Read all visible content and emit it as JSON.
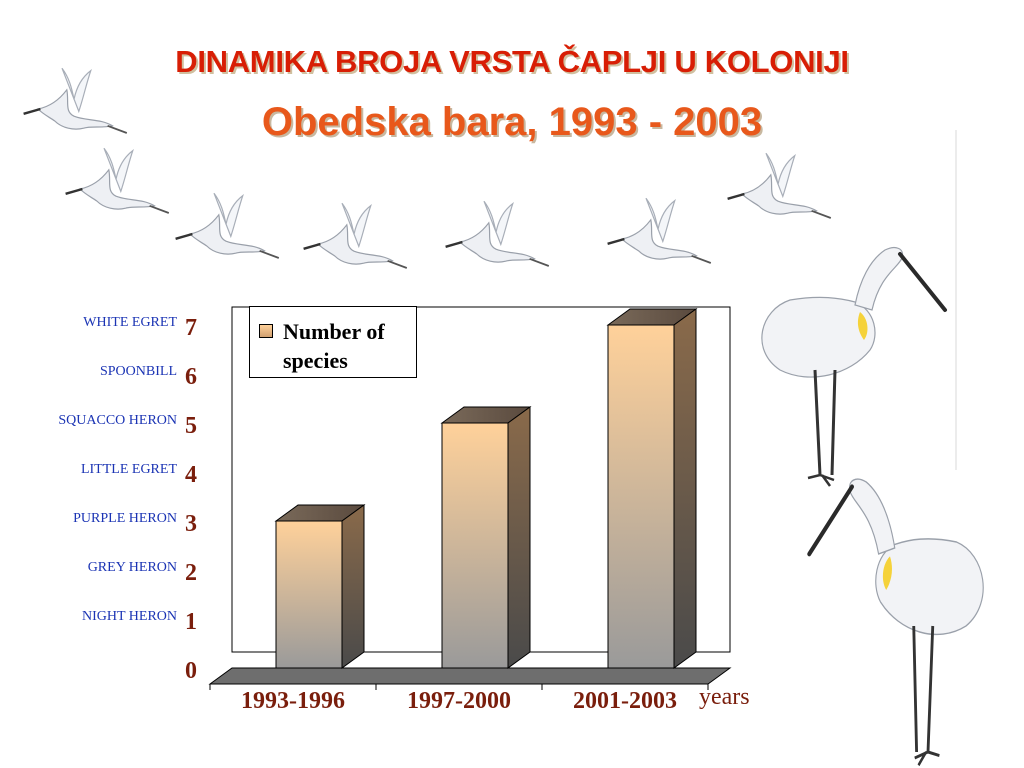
{
  "title_line1": "DINAMIKA BROJA VRSTA ČAPLJI U KOLONIJI",
  "title_line2": "Obedska bara, 1993 - 2003",
  "chart_data": {
    "type": "bar",
    "categories": [
      "1993-1996",
      "1997-2000",
      "2001-2003"
    ],
    "series": [
      {
        "name": "Number of species",
        "values": [
          3,
          5,
          7
        ]
      }
    ],
    "ylim": [
      0,
      7
    ],
    "y_ticks": [
      0,
      1,
      2,
      3,
      4,
      5,
      6,
      7
    ],
    "xlabel": "years",
    "ylabel": "",
    "grid": false,
    "legend": "top-left",
    "style": "3d"
  },
  "legend_label": "Number of species",
  "x_axis_unit": "years",
  "species_labels": [
    {
      "value": 7,
      "name": "WHITE EGRET"
    },
    {
      "value": 6,
      "name": "SPOONBILL"
    },
    {
      "value": 5,
      "name": "SQUACCO HERON"
    },
    {
      "value": 4,
      "name": "LITTLE EGRET"
    },
    {
      "value": 3,
      "name": "PURPLE HERON"
    },
    {
      "value": 2,
      "name": "GREY HERON"
    },
    {
      "value": 1,
      "name": "NIGHT HERON"
    }
  ],
  "colors": {
    "title1": "#d81e05",
    "title2": "#e8581b",
    "species_text": "#1b34b4",
    "tick_text": "#7a1e0c",
    "bar_top": "#ffd19a",
    "bar_bottom": "#9a9a9a"
  },
  "decorations": [
    "flying-spoonbill-icon",
    "standing-spoonbill-icon"
  ]
}
